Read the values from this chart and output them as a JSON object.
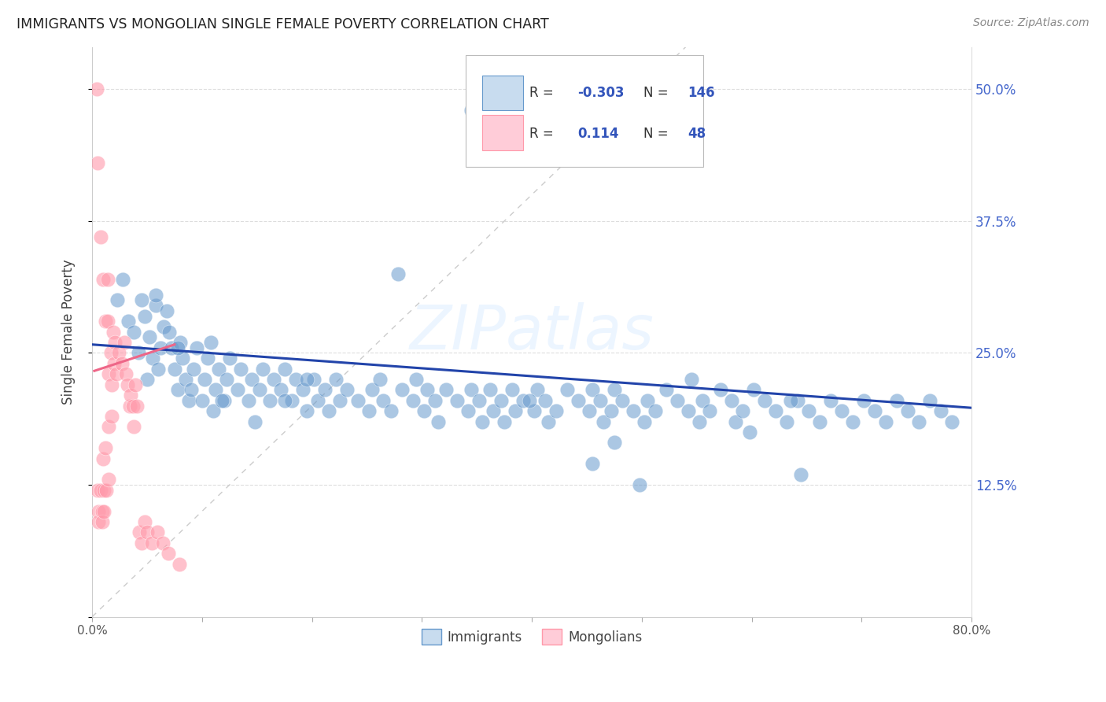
{
  "title": "IMMIGRANTS VS MONGOLIAN SINGLE FEMALE POVERTY CORRELATION CHART",
  "source": "Source: ZipAtlas.com",
  "ylabel": "Single Female Poverty",
  "watermark": "ZIPatlas",
  "xlim": [
    0.0,
    0.8
  ],
  "ylim": [
    0.0,
    0.54
  ],
  "yticks": [
    0.0,
    0.125,
    0.25,
    0.375,
    0.5
  ],
  "ytick_labels": [
    "",
    "12.5%",
    "25.0%",
    "37.5%",
    "50.0%"
  ],
  "xticks": [
    0.0,
    0.1,
    0.2,
    0.3,
    0.4,
    0.5,
    0.6,
    0.7,
    0.8
  ],
  "xtick_labels": [
    "0.0%",
    "",
    "",
    "",
    "",
    "",
    "",
    "",
    "80.0%"
  ],
  "blue_color": "#6699CC",
  "pink_color": "#FF99AA",
  "blue_fill": "#C8DCEF",
  "pink_fill": "#FFCCD8",
  "line_blue": "#2244AA",
  "line_pink": "#EE6688",
  "line_diag": "#CCCCCC",
  "R_blue": -0.303,
  "N_blue": 146,
  "R_pink": 0.114,
  "N_pink": 48,
  "legend_immigrants": "Immigrants",
  "legend_mongolians": "Mongolians",
  "blue_trend": [
    0.258,
    0.198
  ],
  "pink_trend_x": [
    0.002,
    0.075
  ],
  "pink_trend_y": [
    0.233,
    0.258
  ],
  "diag_line": [
    [
      0.0,
      0.54
    ],
    [
      0.0,
      0.54
    ]
  ],
  "blue_x": [
    0.023,
    0.033,
    0.028,
    0.042,
    0.038,
    0.045,
    0.052,
    0.048,
    0.058,
    0.055,
    0.05,
    0.062,
    0.065,
    0.06,
    0.068,
    0.072,
    0.075,
    0.07,
    0.078,
    0.082,
    0.085,
    0.08,
    0.088,
    0.092,
    0.095,
    0.09,
    0.102,
    0.105,
    0.1,
    0.108,
    0.112,
    0.115,
    0.11,
    0.122,
    0.125,
    0.12,
    0.132,
    0.135,
    0.142,
    0.145,
    0.152,
    0.155,
    0.162,
    0.165,
    0.172,
    0.175,
    0.182,
    0.185,
    0.192,
    0.195,
    0.202,
    0.205,
    0.212,
    0.215,
    0.222,
    0.225,
    0.232,
    0.242,
    0.252,
    0.255,
    0.262,
    0.265,
    0.272,
    0.282,
    0.292,
    0.295,
    0.302,
    0.305,
    0.312,
    0.315,
    0.322,
    0.332,
    0.342,
    0.345,
    0.352,
    0.355,
    0.362,
    0.365,
    0.372,
    0.375,
    0.382,
    0.385,
    0.392,
    0.402,
    0.405,
    0.412,
    0.415,
    0.422,
    0.432,
    0.442,
    0.452,
    0.455,
    0.462,
    0.465,
    0.472,
    0.475,
    0.482,
    0.492,
    0.502,
    0.505,
    0.512,
    0.522,
    0.532,
    0.542,
    0.552,
    0.555,
    0.562,
    0.572,
    0.582,
    0.585,
    0.592,
    0.602,
    0.612,
    0.622,
    0.632,
    0.642,
    0.652,
    0.662,
    0.672,
    0.682,
    0.692,
    0.702,
    0.712,
    0.722,
    0.732,
    0.742,
    0.752,
    0.762,
    0.772,
    0.782,
    0.635,
    0.545,
    0.598,
    0.398,
    0.455,
    0.475,
    0.645,
    0.498,
    0.345,
    0.278,
    0.175,
    0.195,
    0.148,
    0.118,
    0.078,
    0.058
  ],
  "blue_y": [
    0.3,
    0.28,
    0.32,
    0.25,
    0.27,
    0.3,
    0.265,
    0.285,
    0.295,
    0.245,
    0.225,
    0.255,
    0.275,
    0.235,
    0.29,
    0.255,
    0.235,
    0.27,
    0.215,
    0.245,
    0.225,
    0.26,
    0.205,
    0.235,
    0.255,
    0.215,
    0.225,
    0.245,
    0.205,
    0.26,
    0.215,
    0.235,
    0.195,
    0.225,
    0.245,
    0.205,
    0.215,
    0.235,
    0.205,
    0.225,
    0.215,
    0.235,
    0.205,
    0.225,
    0.215,
    0.235,
    0.205,
    0.225,
    0.215,
    0.195,
    0.225,
    0.205,
    0.215,
    0.195,
    0.225,
    0.205,
    0.215,
    0.205,
    0.195,
    0.215,
    0.225,
    0.205,
    0.195,
    0.215,
    0.205,
    0.225,
    0.195,
    0.215,
    0.205,
    0.185,
    0.215,
    0.205,
    0.195,
    0.215,
    0.205,
    0.185,
    0.215,
    0.195,
    0.205,
    0.185,
    0.215,
    0.195,
    0.205,
    0.195,
    0.215,
    0.205,
    0.185,
    0.195,
    0.215,
    0.205,
    0.195,
    0.215,
    0.205,
    0.185,
    0.195,
    0.215,
    0.205,
    0.195,
    0.185,
    0.205,
    0.195,
    0.215,
    0.205,
    0.195,
    0.185,
    0.205,
    0.195,
    0.215,
    0.205,
    0.185,
    0.195,
    0.215,
    0.205,
    0.195,
    0.185,
    0.205,
    0.195,
    0.185,
    0.205,
    0.195,
    0.185,
    0.205,
    0.195,
    0.185,
    0.205,
    0.195,
    0.185,
    0.205,
    0.195,
    0.185,
    0.205,
    0.225,
    0.175,
    0.205,
    0.145,
    0.165,
    0.135,
    0.125,
    0.48,
    0.325,
    0.205,
    0.225,
    0.185,
    0.205,
    0.255,
    0.305
  ],
  "pink_x": [
    0.004,
    0.005,
    0.005,
    0.006,
    0.006,
    0.008,
    0.008,
    0.009,
    0.009,
    0.01,
    0.01,
    0.011,
    0.011,
    0.012,
    0.012,
    0.013,
    0.014,
    0.014,
    0.015,
    0.015,
    0.015,
    0.017,
    0.018,
    0.018,
    0.019,
    0.02,
    0.021,
    0.022,
    0.024,
    0.027,
    0.029,
    0.031,
    0.032,
    0.034,
    0.035,
    0.037,
    0.038,
    0.039,
    0.041,
    0.043,
    0.045,
    0.048,
    0.05,
    0.054,
    0.059,
    0.064,
    0.069,
    0.079
  ],
  "pink_y": [
    0.5,
    0.43,
    0.12,
    0.1,
    0.09,
    0.36,
    0.12,
    0.1,
    0.09,
    0.32,
    0.15,
    0.12,
    0.1,
    0.28,
    0.16,
    0.12,
    0.32,
    0.28,
    0.23,
    0.18,
    0.13,
    0.25,
    0.22,
    0.19,
    0.27,
    0.24,
    0.26,
    0.23,
    0.25,
    0.24,
    0.26,
    0.23,
    0.22,
    0.2,
    0.21,
    0.2,
    0.18,
    0.22,
    0.2,
    0.08,
    0.07,
    0.09,
    0.08,
    0.07,
    0.08,
    0.07,
    0.06,
    0.05
  ]
}
